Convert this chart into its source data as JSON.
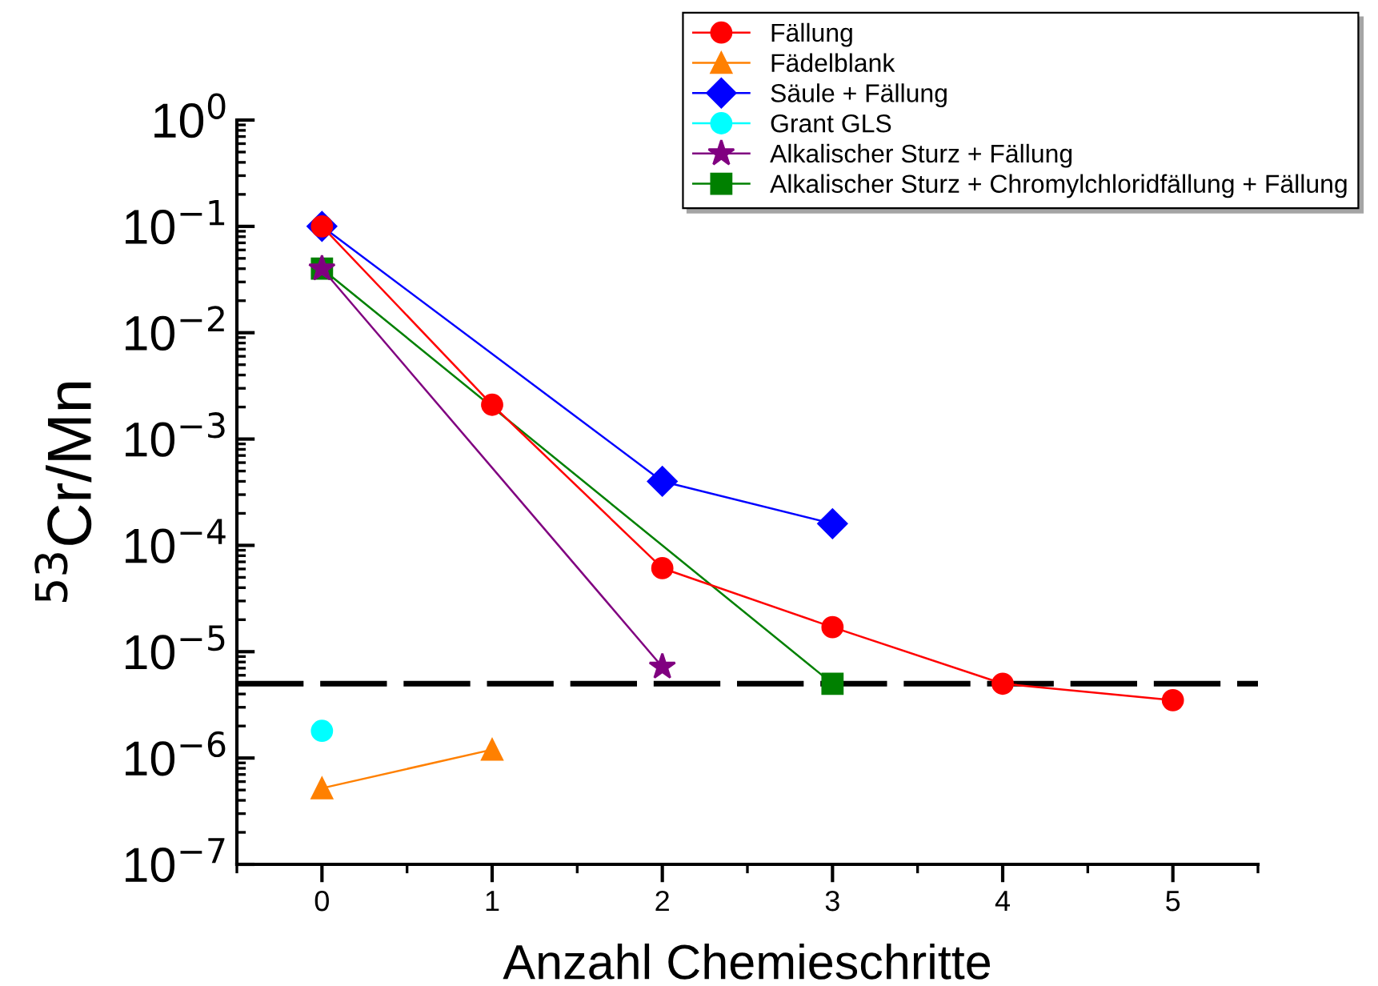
{
  "chart_data": {
    "type": "line",
    "xlabel": "Anzahl Chemieschritte",
    "ylabel": "$^{53}$Cr/Mn",
    "log": "y",
    "xlim": [
      -0.5,
      5.5
    ],
    "xticks": [
      0,
      1,
      2,
      3,
      4,
      5
    ],
    "ylim": [
      1e-07,
      1
    ],
    "yticks": [
      {
        "value": 1e-07,
        "label": "10$^{−7}$"
      },
      {
        "value": 1e-06,
        "label": "10$^{−6}$"
      },
      {
        "value": 1e-05,
        "label": "10$^{−5}$"
      },
      {
        "value": 0.0001,
        "label": "10$^{−4}$"
      },
      {
        "value": 0.001,
        "label": "10$^{−3}$"
      },
      {
        "value": 0.01,
        "label": "10$^{−2}$"
      },
      {
        "value": 0.1,
        "label": "10$^{−1}$"
      },
      {
        "value": 1,
        "label": "10$^{0}$"
      }
    ],
    "grid": false,
    "legend": "top right",
    "line_style": "solid",
    "series": [
      {
        "name": "Fällung",
        "color": "#ff0000",
        "marker": "circle",
        "x": [
          0,
          1,
          2,
          3,
          4,
          5
        ],
        "values": [
          0.1,
          0.0021,
          6.1e-05,
          1.7e-05,
          5e-06,
          3.5e-06
        ]
      },
      {
        "name": "Fädelblank",
        "color": "#ff8000",
        "marker": "triangle",
        "x": [
          0,
          1
        ],
        "values": [
          5.2e-07,
          1.2e-06
        ]
      },
      {
        "name": "Säule + Fällung",
        "color": "#0000ff",
        "marker": "diamond",
        "x": [
          0,
          2,
          3
        ],
        "values": [
          0.1,
          0.0004,
          0.00016
        ]
      },
      {
        "name": "Grant GLS",
        "color": "#00ffff",
        "marker": "circle",
        "x": [
          0
        ],
        "values": [
          1.8e-06
        ]
      },
      {
        "name": "Alkalischer Sturz + Fällung",
        "color": "#800080",
        "marker": "star",
        "x": [
          0,
          2
        ],
        "values": [
          0.04,
          7.2e-06
        ]
      },
      {
        "name": "Alkalischer Sturz + Chromylchloridfällung + Fällung",
        "color": "#008000",
        "marker": "square",
        "x": [
          0,
          3
        ],
        "values": [
          0.04,
          5e-06
        ]
      }
    ],
    "ref_lines": [
      {
        "axis": "y",
        "value": 5e-06,
        "color": "#000000",
        "line_style": "dashed"
      }
    ]
  }
}
